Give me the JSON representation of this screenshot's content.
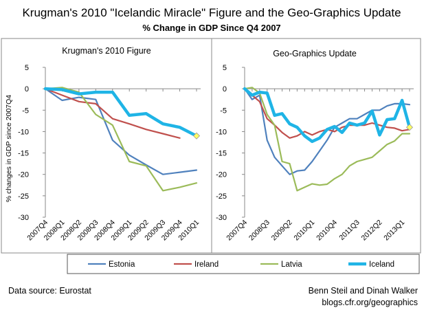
{
  "header": {
    "title": "Krugman's 2010 \"Icelandic Miracle\" Figure and the Geo-Graphics Update",
    "subtitle": "% Change in GDP Since Q4 2007"
  },
  "footer": {
    "source": "Data source: Eurostat",
    "credit_line1": "Benn Steil and Dinah Walker",
    "credit_line2": "blogs.cfr.org/geographics"
  },
  "colors": {
    "Estonia": "#4f81bd",
    "Ireland": "#c0504d",
    "Latvia": "#9bbb59",
    "Iceland": "#1fb4e6",
    "marker": "#ffff66"
  },
  "legend": {
    "placement": "bottom",
    "entries": [
      "Estonia",
      "Ireland",
      "Latvia",
      "Iceland"
    ]
  },
  "chart_data": [
    {
      "type": "line",
      "title": "Krugman's 2010  Figure",
      "ylabel": "% changes in GDP since 2007Q4",
      "ylim": [
        -30,
        5
      ],
      "yticks": [
        5,
        0,
        -5,
        -10,
        -15,
        -20,
        -25,
        -30
      ],
      "grid": false,
      "x": [
        "2007Q4",
        "2008Q1",
        "2008Q2",
        "2008Q3",
        "2008Q4",
        "2009Q1",
        "2009Q2",
        "2009Q3",
        "2009Q4",
        "2010Q1"
      ],
      "xtick_labels": [
        "2007Q4",
        "2008Q1",
        "2008Q2",
        "2008Q3",
        "2008Q4",
        "2009Q1",
        "2009Q2",
        "2009Q3",
        "2009Q4",
        "2010Q1"
      ],
      "marker": {
        "series": "Iceland",
        "x": "2010Q1",
        "y": -11
      },
      "series": [
        {
          "name": "Estonia",
          "values": [
            0,
            -2.7,
            -2,
            -2.5,
            -12,
            -15.5,
            -17.8,
            -20,
            -19.5,
            -19
          ]
        },
        {
          "name": "Ireland",
          "values": [
            0,
            -1.5,
            -3,
            -3.5,
            -7,
            -8.2,
            -9.5,
            -10.5,
            -11.5,
            null
          ]
        },
        {
          "name": "Latvia",
          "values": [
            0,
            0.3,
            -0.8,
            -6,
            -8.5,
            -17,
            -18,
            -23.8,
            -23,
            -22
          ]
        },
        {
          "name": "Iceland",
          "values": [
            0,
            -0.2,
            -1.2,
            -0.8,
            -0.8,
            -6.2,
            -5.8,
            -8.2,
            -9,
            -11
          ]
        }
      ]
    },
    {
      "type": "line",
      "title": "Geo-Graphics Update",
      "ylabel": "",
      "ylim": [
        -30,
        5
      ],
      "yticks": [
        5,
        0,
        -5,
        -10,
        -15,
        -20,
        -25,
        -30
      ],
      "grid": false,
      "x": [
        "2007Q4",
        "2008Q1",
        "2008Q2",
        "2008Q3",
        "2008Q4",
        "2009Q1",
        "2009Q2",
        "2009Q3",
        "2009Q4",
        "2010Q1",
        "2010Q2",
        "2010Q3",
        "2010Q4",
        "2011Q1",
        "2011Q2",
        "2011Q3",
        "2011Q4",
        "2012Q1",
        "2012Q2",
        "2012Q3",
        "2012Q4",
        "2013Q1",
        "2013Q2"
      ],
      "xtick_labels": [
        "2007Q4",
        "2008Q3",
        "2009Q2",
        "2010Q1",
        "2010Q4",
        "2011Q3",
        "2012Q2",
        "2013Q1"
      ],
      "marker": {
        "series": "Iceland",
        "x": "2013Q2",
        "y": -9
      },
      "series": [
        {
          "name": "Estonia",
          "values": [
            0,
            -2.5,
            -1.5,
            -12,
            -16,
            -18,
            -20,
            -19.2,
            -19,
            -17,
            -14.5,
            -12,
            -9,
            -8,
            -7,
            -7,
            -6,
            -5,
            -5,
            -4,
            -3.5,
            -3.5,
            -3.7
          ]
        },
        {
          "name": "Ireland",
          "values": [
            0,
            -1.5,
            -3,
            -7,
            -8.5,
            -10.2,
            -11.5,
            -11,
            -10,
            -10.8,
            -10,
            -9.5,
            -10,
            -9,
            -8.5,
            -8.5,
            -8.5,
            -8,
            -8.5,
            -9,
            -9.2,
            -9.8,
            -9.5
          ]
        },
        {
          "name": "Latvia",
          "values": [
            0,
            0.3,
            -1,
            -6,
            -8.5,
            -17,
            -17.5,
            -23.8,
            -23,
            -22.2,
            -22.5,
            -22.3,
            -21,
            -20,
            -18,
            -17,
            -16.5,
            -16,
            -14.5,
            -13,
            -12.2,
            -10.5,
            -10.5
          ]
        },
        {
          "name": "Iceland",
          "values": [
            0,
            -1.5,
            -0.8,
            -1,
            -6.2,
            -5.8,
            -8.2,
            -9,
            -11,
            -12.3,
            -11.5,
            -9.5,
            -8.8,
            -10.2,
            -8,
            -8.5,
            -8,
            -5.2,
            -10.8,
            -7.2,
            -7,
            -2.7,
            -9
          ]
        }
      ]
    }
  ]
}
